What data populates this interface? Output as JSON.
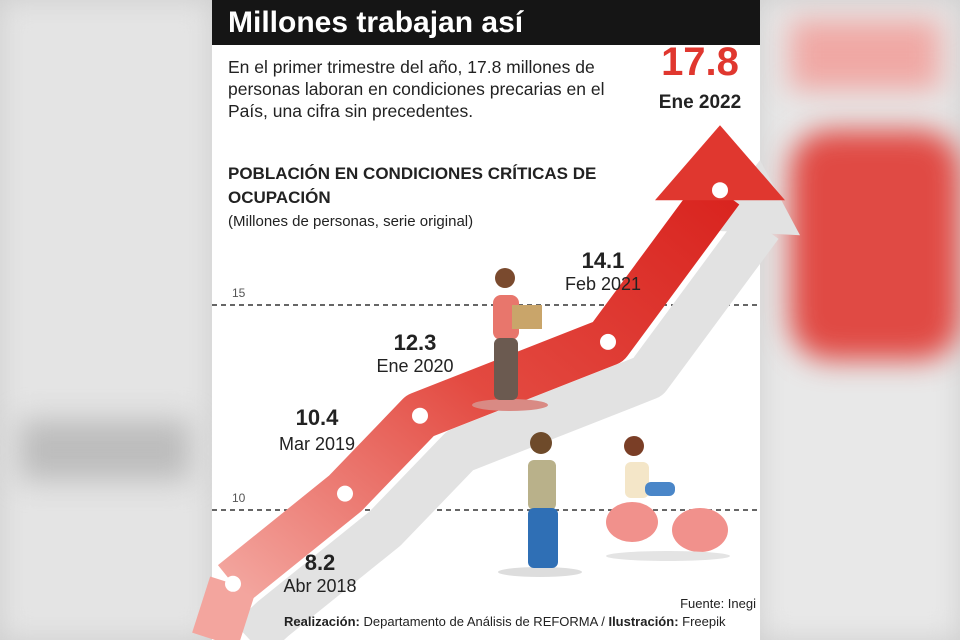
{
  "header": {
    "title": "Millones trabajan así",
    "description": "En el primer trimestre del año, 17.8 millones de personas laboran en condiciones precarias en el País, una cifra sin precedentes."
  },
  "chart_data": {
    "type": "line",
    "title": "POBLACIÓN EN CONDICIONES CRÍTICAS DE OCUPACIÓN",
    "subtitle": "(Millones de personas, serie original)",
    "categories": [
      "Abr 2018",
      "Mar 2019",
      "Ene 2020",
      "Feb 2021",
      "Ene 2022"
    ],
    "values": [
      8.2,
      10.4,
      12.3,
      14.1,
      17.8
    ],
    "color": "#e0372f",
    "ylim": [
      7,
      18.5
    ],
    "yticks": [
      10,
      15
    ],
    "grid": true
  },
  "footer": {
    "source": "Fuente: Inegi",
    "credit_label": "Realización:",
    "credit": "Departamento de Análisis de REFORMA /",
    "illustration_label": "Ilustración:",
    "illustration": "Freepik"
  }
}
